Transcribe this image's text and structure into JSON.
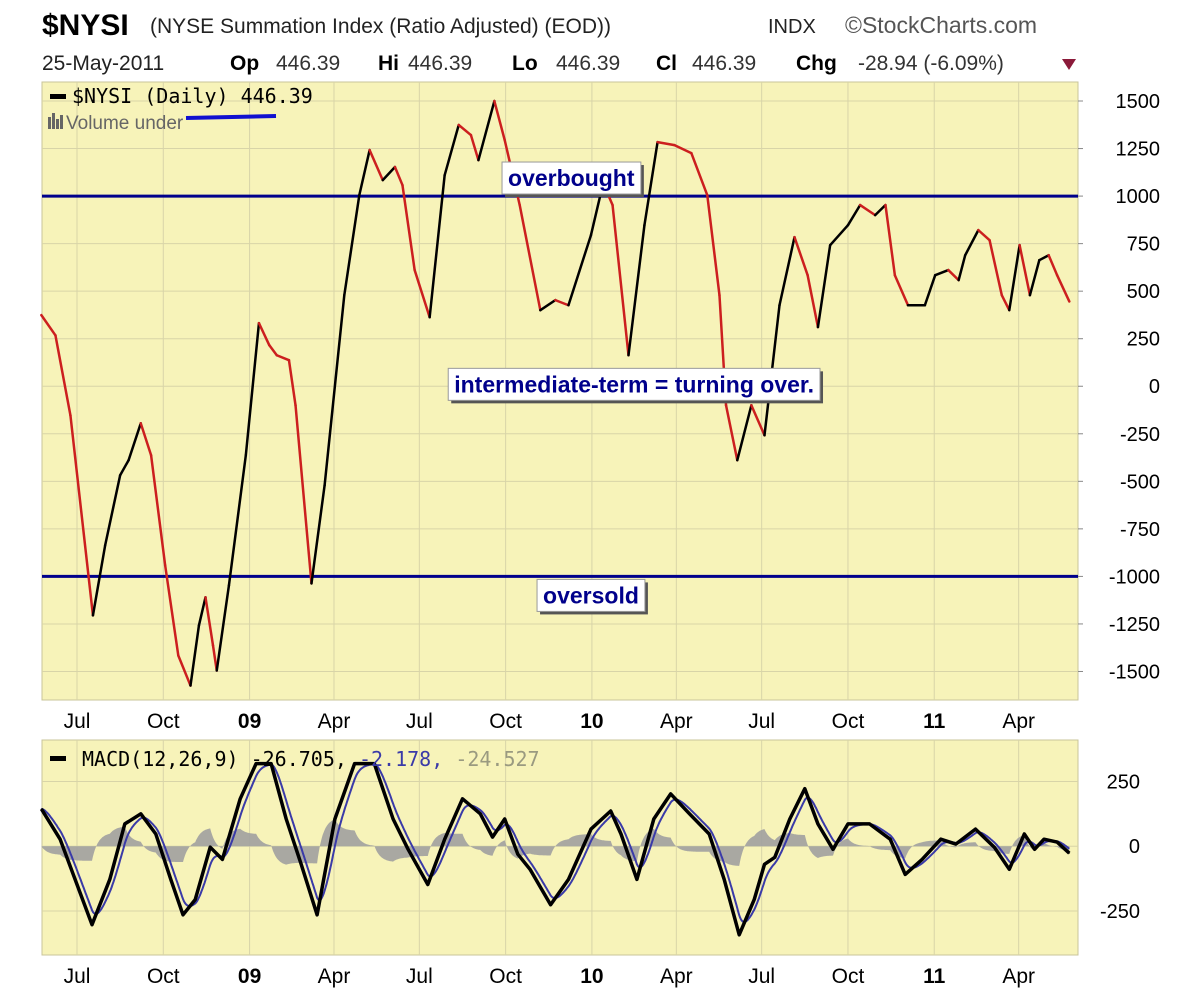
{
  "header": {
    "symbol": "$NYSI",
    "description": "(NYSE Summation Index (Ratio Adjusted) (EOD))",
    "exchange": "INDX",
    "brand": "©StockCharts.com",
    "date": "25-May-2011",
    "op_label": "Op",
    "op": "446.39",
    "hi_label": "Hi",
    "hi": "446.39",
    "lo_label": "Lo",
    "lo": "446.39",
    "cl_label": "Cl",
    "cl": "446.39",
    "chg_label": "Chg",
    "chg": "-28.94 (-6.09%)",
    "chg_icon": "triangle-down-icon"
  },
  "colors": {
    "background": "#f7f3b9",
    "rising": "#000000",
    "falling": "#cc1f1f",
    "levels": "#00008b",
    "signal": "#3a3aa8",
    "histogram": "#a0a0a0",
    "chg_arrow": "#8b1a3a"
  },
  "chart_data": [
    {
      "type": "line",
      "legend": "$NYSI (Daily) 446.39",
      "legend_sub": "Volume under",
      "ylim": [
        -1650,
        1600
      ],
      "yticks": [
        1500,
        1250,
        1000,
        750,
        500,
        250,
        0,
        -250,
        -500,
        -750,
        -1000,
        -1250,
        -1500
      ],
      "xticks": [
        {
          "label": "Jul",
          "date": "2008-07-01",
          "bold": false
        },
        {
          "label": "Oct",
          "date": "2008-10-01",
          "bold": false
        },
        {
          "label": "09",
          "date": "2009-01-01",
          "bold": true
        },
        {
          "label": "Apr",
          "date": "2009-04-01",
          "bold": false
        },
        {
          "label": "Jul",
          "date": "2009-07-01",
          "bold": false
        },
        {
          "label": "Oct",
          "date": "2009-10-01",
          "bold": false
        },
        {
          "label": "10",
          "date": "2010-01-01",
          "bold": true
        },
        {
          "label": "Apr",
          "date": "2010-04-01",
          "bold": false
        },
        {
          "label": "Jul",
          "date": "2010-07-01",
          "bold": false
        },
        {
          "label": "Oct",
          "date": "2010-10-01",
          "bold": false
        },
        {
          "label": "11",
          "date": "2011-01-01",
          "bold": true
        },
        {
          "label": "Apr",
          "date": "2011-04-01",
          "bold": false
        }
      ],
      "grid": true,
      "levels": [
        1000,
        -1000
      ],
      "annotations": [
        {
          "text": "overbought",
          "date": "2009-12-10",
          "value": 1095
        },
        {
          "text": "intermediate-term = turning over.",
          "date": "2010-02-15",
          "value": 10
        },
        {
          "text": "oversold",
          "date": "2009-12-31",
          "value": -1100
        }
      ],
      "series": [
        {
          "dates": [
            "2008-05-24",
            "2008-06-08",
            "2008-06-24",
            "2008-07-18",
            "2008-07-31",
            "2008-08-16",
            "2008-08-25",
            "2008-09-07",
            "2008-09-18",
            "2008-10-03",
            "2008-10-17",
            "2008-10-30",
            "2008-11-08",
            "2008-11-15",
            "2008-11-23",
            "2008-11-27",
            "2008-12-10",
            "2008-12-28",
            "2009-01-11",
            "2009-01-22",
            "2009-01-30",
            "2009-02-12",
            "2009-02-19",
            "2009-03-08",
            "2009-03-22",
            "2009-04-12",
            "2009-04-28",
            "2009-05-09",
            "2009-05-23",
            "2009-06-05",
            "2009-06-13",
            "2009-06-26",
            "2009-07-12",
            "2009-07-28",
            "2009-08-12",
            "2009-08-25",
            "2009-09-02",
            "2009-09-19",
            "2009-09-30",
            "2009-10-16",
            "2009-11-07",
            "2009-11-23",
            "2009-12-07",
            "2009-12-31",
            "2010-01-13",
            "2010-01-23",
            "2010-02-09",
            "2010-02-26",
            "2010-03-12",
            "2010-03-30",
            "2010-04-17",
            "2010-05-04",
            "2010-05-17",
            "2010-05-24",
            "2010-06-05",
            "2010-06-20",
            "2010-07-04",
            "2010-07-20",
            "2010-08-05",
            "2010-08-19",
            "2010-08-30",
            "2010-09-12",
            "2010-10-01",
            "2010-10-14",
            "2010-10-30",
            "2010-11-10",
            "2010-11-20",
            "2010-12-04",
            "2010-12-22",
            "2011-01-02",
            "2011-01-16",
            "2011-01-27",
            "2011-02-03",
            "2011-02-17",
            "2011-03-01",
            "2011-03-14",
            "2011-03-22",
            "2011-04-02",
            "2011-04-13",
            "2011-04-23",
            "2011-05-03",
            "2011-05-12",
            "2011-05-25"
          ],
          "values": [
            374,
            268,
            -153,
            -1205,
            -837,
            -468,
            -389,
            -195,
            -363,
            -942,
            -1416,
            -1574,
            -1258,
            -1110,
            -1363,
            -1495,
            -1047,
            -363,
            332,
            216,
            163,
            137,
            -100,
            -1037,
            -521,
            479,
            1005,
            1242,
            1084,
            1153,
            1058,
            611,
            363,
            1110,
            1374,
            1321,
            1189,
            1500,
            1295,
            953,
            400,
            453,
            426,
            795,
            1068,
            953,
            163,
            847,
            1284,
            1268,
            1226,
            1005,
            479,
            -100,
            -389,
            -100,
            -258,
            426,
            784,
            584,
            311,
            742,
            847,
            953,
            900,
            953,
            584,
            426,
            426,
            584,
            611,
            558,
            689,
            821,
            768,
            479,
            400,
            742,
            479,
            663,
            689,
            584,
            446
          ]
        }
      ]
    },
    {
      "type": "line",
      "legend_name": "MACD(12,26,9)",
      "legend_macd": "-26.705,",
      "legend_signal": "-2.178,",
      "legend_hist": "-24.527",
      "ylim": [
        -420,
        410
      ],
      "yticks": [
        250,
        0,
        -250
      ],
      "series": [
        {
          "name": "MACD",
          "dates": [
            "2008-05-24",
            "2008-06-13",
            "2008-07-17",
            "2008-08-05",
            "2008-08-21",
            "2008-09-07",
            "2008-09-23",
            "2008-10-09",
            "2008-10-22",
            "2008-11-04",
            "2008-11-20",
            "2008-12-03",
            "2008-12-22",
            "2009-01-08",
            "2009-01-24",
            "2009-02-09",
            "2009-02-25",
            "2009-03-14",
            "2009-04-02",
            "2009-04-23",
            "2009-05-14",
            "2009-06-03",
            "2009-06-19",
            "2009-07-10",
            "2009-07-28",
            "2009-08-16",
            "2009-09-04",
            "2009-09-17",
            "2009-09-30",
            "2009-10-14",
            "2009-10-27",
            "2009-11-18",
            "2009-12-07",
            "2009-12-31",
            "2010-01-21",
            "2010-02-01",
            "2010-02-18",
            "2010-03-08",
            "2010-03-26",
            "2010-04-15",
            "2010-05-06",
            "2010-05-22",
            "2010-06-07",
            "2010-06-23",
            "2010-07-04",
            "2010-07-15",
            "2010-07-31",
            "2010-08-16",
            "2010-08-30",
            "2010-09-15",
            "2010-10-01",
            "2010-10-24",
            "2010-11-15",
            "2010-12-01",
            "2010-12-19",
            "2011-01-08",
            "2011-01-24",
            "2011-02-14",
            "2011-03-06",
            "2011-03-22",
            "2011-04-07",
            "2011-04-18",
            "2011-04-28",
            "2011-05-12",
            "2011-05-25"
          ],
          "values": [
            144,
            27,
            -303,
            -128,
            86,
            125,
            47,
            -128,
            -265,
            -206,
            -4,
            -51,
            183,
            319,
            319,
            105,
            -70,
            -265,
            105,
            319,
            319,
            105,
            -12,
            -148,
            27,
            183,
            125,
            35,
            105,
            -31,
            -89,
            -226,
            -128,
            66,
            136,
            47,
            -128,
            105,
            202,
            125,
            47,
            -128,
            -342,
            -206,
            -70,
            -43,
            105,
            222,
            86,
            -12,
            86,
            86,
            27,
            -109,
            -51,
            27,
            8,
            66,
            -4,
            -89,
            47,
            -12,
            27,
            16,
            -27
          ]
        }
      ]
    }
  ]
}
